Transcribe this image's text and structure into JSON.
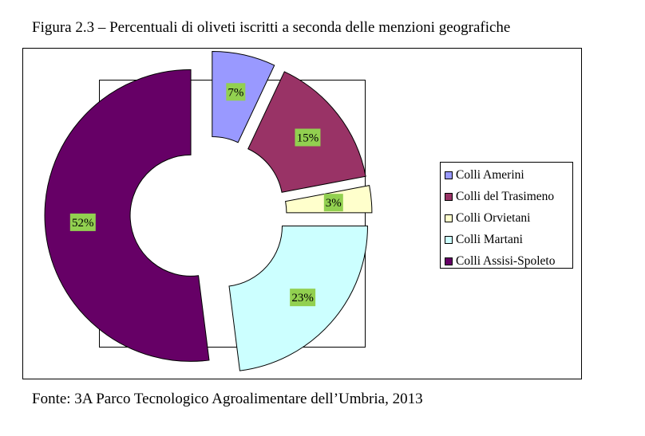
{
  "caption": "Figura 2.3 – Percentuali di oliveti iscritti a seconda delle menzioni geografiche",
  "source": "Fonte: 3A Parco Tecnologico Agroalimentare dell’Umbria, 2013",
  "label_bg": "#92d050",
  "chart_data": {
    "type": "pie",
    "subtype": "exploded-donut",
    "legend_position": "right",
    "categories": [
      "Colli Amerini",
      "Colli del Trasimeno",
      "Colli Orvietani",
      "Colli Martani",
      "Colli Assisi-Spoleto"
    ],
    "values": [
      7,
      15,
      3,
      23,
      52
    ],
    "data_labels": [
      "7%",
      "15%",
      "3%",
      "23%",
      "52%"
    ],
    "colors": [
      "#9999ff",
      "#993366",
      "#ffffcc",
      "#ccffff",
      "#660066"
    ]
  }
}
